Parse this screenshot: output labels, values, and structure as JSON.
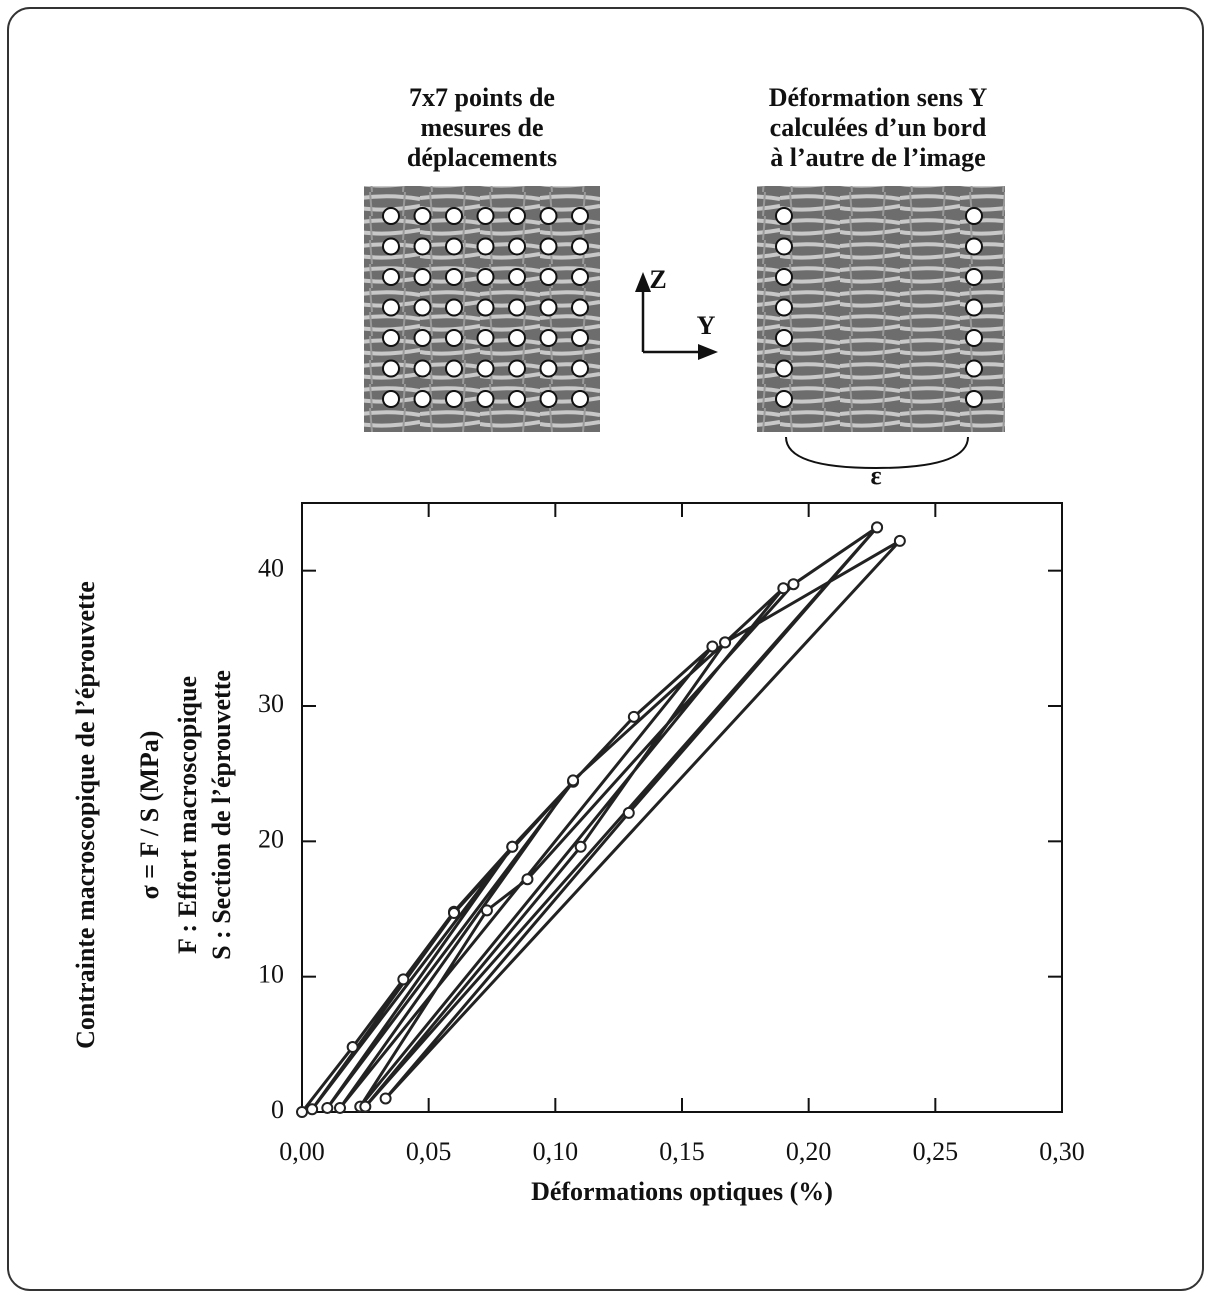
{
  "chart_data": {
    "type": "line",
    "annotations": [
      "7x7 points de",
      "mesures de",
      "déplacements",
      "Déformation sens Y",
      "calculées d’un bord",
      "à l’autre de l’image",
      "Z",
      "Y",
      "ε"
    ],
    "ylabel": [
      "Contrainte macroscopique de l’éprouvette",
      "σ = F / S    (MPa)",
      "F : Effort macroscopique",
      "S : Section de l’éprouvette"
    ],
    "xlabel": "Déformations optiques (%)",
    "xlim": [
      0,
      0.3
    ],
    "ylim": [
      0,
      45
    ],
    "xticks": [
      {
        "value": 0,
        "label": "0,00"
      },
      {
        "value": 0.05,
        "label": "0,05"
      },
      {
        "value": 0.1,
        "label": "0,10"
      },
      {
        "value": 0.15,
        "label": "0,15"
      },
      {
        "value": 0.2,
        "label": "0,20"
      },
      {
        "value": 0.25,
        "label": "0,25"
      },
      {
        "value": 0.3,
        "label": "0,30"
      }
    ],
    "yticks": [
      0,
      10,
      20,
      30,
      40
    ],
    "series": [
      {
        "color": "#222222",
        "x": [
          0,
          0.02,
          0.04,
          0.06,
          0.083,
          0.004,
          0.06,
          0.107,
          0.01,
          0.083,
          0.131,
          0.162,
          0.015,
          0.107,
          0.167,
          0.19,
          0.023,
          0.073,
          0.089,
          0.194,
          0.227,
          0.025,
          0.11,
          0.167,
          0.236,
          0.033,
          0.129,
          0.227
        ],
        "values": [
          0,
          4.8,
          9.8,
          14.8,
          19.6,
          0.2,
          14.7,
          24.4,
          0.3,
          19.6,
          29.2,
          34.4,
          0.3,
          24.5,
          34.7,
          38.7,
          0.4,
          14.9,
          17.2,
          39.0,
          43.2,
          0.4,
          19.6,
          34.7,
          42.2,
          1.0,
          22.1,
          43.2
        ]
      }
    ]
  }
}
